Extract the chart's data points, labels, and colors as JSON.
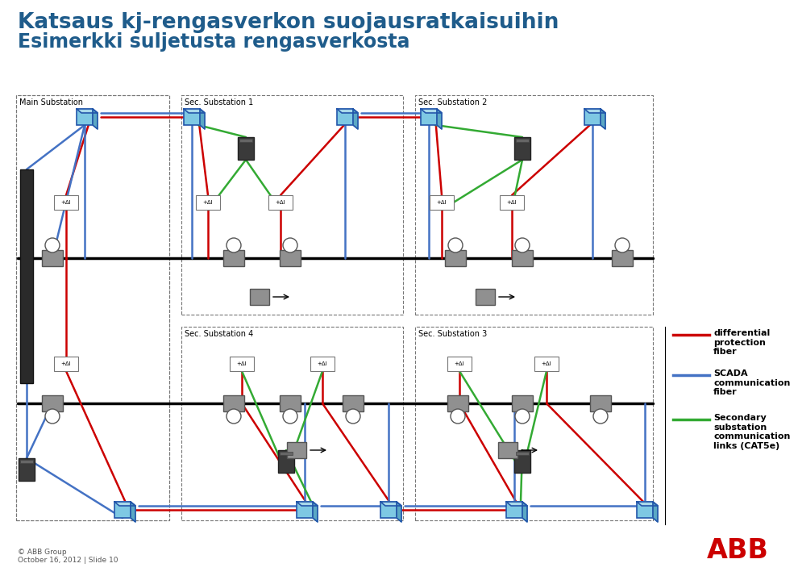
{
  "title_line1": "Katsaus kj-rengasverkon suojausratkaisuihin",
  "title_line2": "Esimerkki suljetusta rengasverkosta",
  "title_color": "#1F5C8B",
  "title_fontsize": 19,
  "subtitle_fontsize": 17,
  "bg_color": "#FFFFFF",
  "legend_red_label": "differential\nprotection\nfiber",
  "legend_blue_label": "SCADA\ncommunication\nfiber",
  "legend_green_label": "Secondary\nsubstation\ncommunication\nlinks (CAT5e)",
  "footer_left": "© ABB Group\nOctober 16, 2012 | Slide 10",
  "red_color": "#CC0000",
  "blue_color": "#4472C4",
  "green_color": "#33AA33",
  "black_color": "#000000",
  "gray_color": "#808080",
  "light_gray": "#C0C0C0",
  "dashed_border_color": "#777777",
  "cube_front": "#7EC8E3",
  "cube_top": "#A8D8EA",
  "cube_right": "#5BA8C4",
  "cube_edge": "#2255AA",
  "device_body": "#3A3A3A",
  "switch_gray": "#909090",
  "relay_border": "#777777"
}
